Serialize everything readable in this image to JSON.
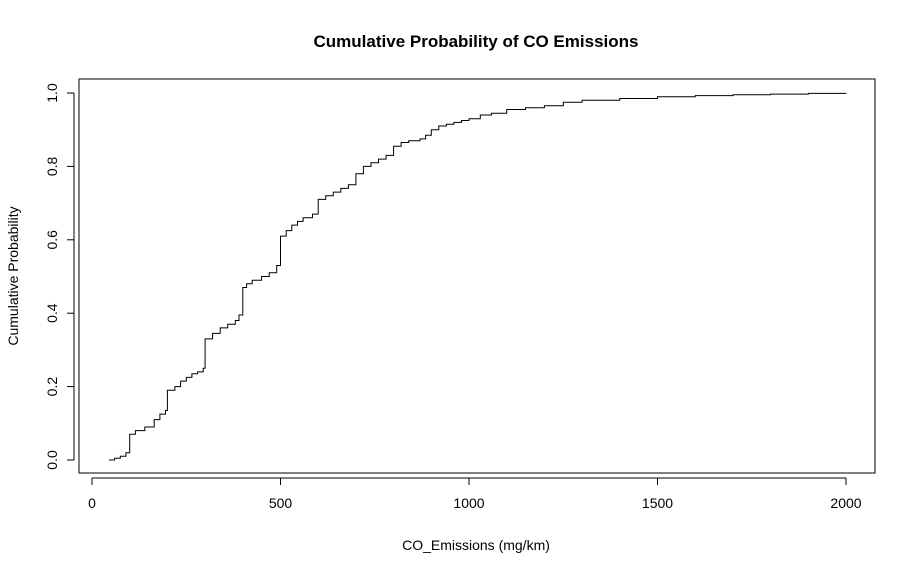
{
  "chart_data": {
    "type": "line",
    "step": true,
    "title": "Cumulative Probability of CO Emissions",
    "xlabel": "CO_Emissions (mg/km)",
    "ylabel": "Cumulative Probability",
    "xlim": [
      0,
      2000
    ],
    "ylim": [
      0,
      1
    ],
    "xticks": [
      "0",
      "500",
      "1000",
      "1500",
      "2000"
    ],
    "yticks": [
      "0.0",
      "0.2",
      "0.4",
      "0.6",
      "0.8",
      "1.0"
    ],
    "grid": false,
    "series": [
      {
        "x": [
          45,
          60,
          75,
          90,
          100,
          115,
          140,
          165,
          180,
          195,
          200,
          220,
          235,
          250,
          265,
          280,
          295,
          300,
          320,
          340,
          360,
          380,
          390,
          400,
          410,
          425,
          450,
          470,
          490,
          500,
          515,
          530,
          545,
          560,
          585,
          600,
          620,
          640,
          660,
          680,
          700,
          720,
          740,
          760,
          780,
          800,
          820,
          840,
          870,
          885,
          900,
          920,
          940,
          960,
          980,
          1000,
          1030,
          1060,
          1100,
          1150,
          1200,
          1250,
          1300,
          1400,
          1500,
          1600,
          1700,
          1800,
          1900,
          2000
        ],
        "y": [
          0.0,
          0.005,
          0.01,
          0.02,
          0.07,
          0.08,
          0.09,
          0.11,
          0.125,
          0.135,
          0.19,
          0.2,
          0.215,
          0.225,
          0.235,
          0.24,
          0.25,
          0.33,
          0.345,
          0.36,
          0.37,
          0.38,
          0.395,
          0.47,
          0.48,
          0.49,
          0.5,
          0.51,
          0.53,
          0.61,
          0.625,
          0.64,
          0.65,
          0.66,
          0.67,
          0.71,
          0.72,
          0.73,
          0.74,
          0.75,
          0.78,
          0.8,
          0.81,
          0.82,
          0.83,
          0.855,
          0.865,
          0.87,
          0.875,
          0.885,
          0.9,
          0.91,
          0.915,
          0.92,
          0.925,
          0.93,
          0.94,
          0.945,
          0.955,
          0.96,
          0.965,
          0.975,
          0.98,
          0.985,
          0.99,
          0.993,
          0.995,
          0.997,
          0.999,
          1.0
        ]
      }
    ]
  }
}
